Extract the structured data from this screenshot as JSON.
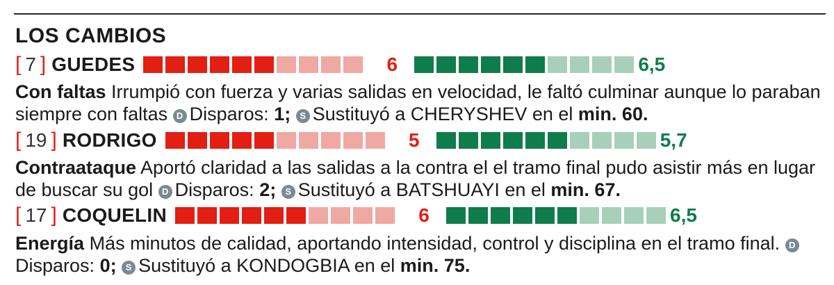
{
  "section": {
    "title": "LOS CAMBIOS"
  },
  "players": [
    {
      "number": "7",
      "name": "GUEDES",
      "rating_a": {
        "filled": 6,
        "total": 10,
        "label": "6"
      },
      "rating_b": {
        "filled": 6,
        "total": 10,
        "label": "6,5"
      },
      "keyword": "Con faltas",
      "comment": "Irrumpió con fuerza y varias salidas en velocidad, le faltó culminar aunque lo paraban siempre con faltas",
      "disparos_label": "Disparos:",
      "disparos_value": "1;",
      "sub_label": "Sustituyó a CHERYSHEV en el",
      "sub_min": "min. 60."
    },
    {
      "number": "19",
      "name": "RODRIGO",
      "rating_a": {
        "filled": 5,
        "total": 10,
        "label": "5"
      },
      "rating_b": {
        "filled": 6,
        "total": 10,
        "label": "5,7"
      },
      "keyword": "Contraataque",
      "comment": "Aportó claridad a las salidas a la contra el el tramo final pudo asistir más en lugar de buscar su gol",
      "disparos_label": "Disparos:",
      "disparos_value": "2;",
      "sub_label": "Sustituyó a BATSHUAYI en el",
      "sub_min": "min. 67."
    },
    {
      "number": "17",
      "name": "COQUELIN",
      "rating_a": {
        "filled": 6,
        "total": 10,
        "label": "6"
      },
      "rating_b": {
        "filled": 6,
        "total": 10,
        "label": "6,5"
      },
      "keyword": "Energía",
      "comment": "Más minutos de calidad, aportando intensidad, control y disciplina en el tramo final.",
      "disparos_label": "Disparos:",
      "disparos_value": "0;",
      "sub_label": "Sustituyó a KONDOGBIA en el",
      "sub_min": "min. 75."
    }
  ],
  "icons": {
    "disparos": "D",
    "sustitucion": "S"
  },
  "colors": {
    "red": "#e31e13",
    "red_light": "#f0a8a3",
    "green": "#0e7d4b",
    "green_light": "#a8cfb9"
  }
}
